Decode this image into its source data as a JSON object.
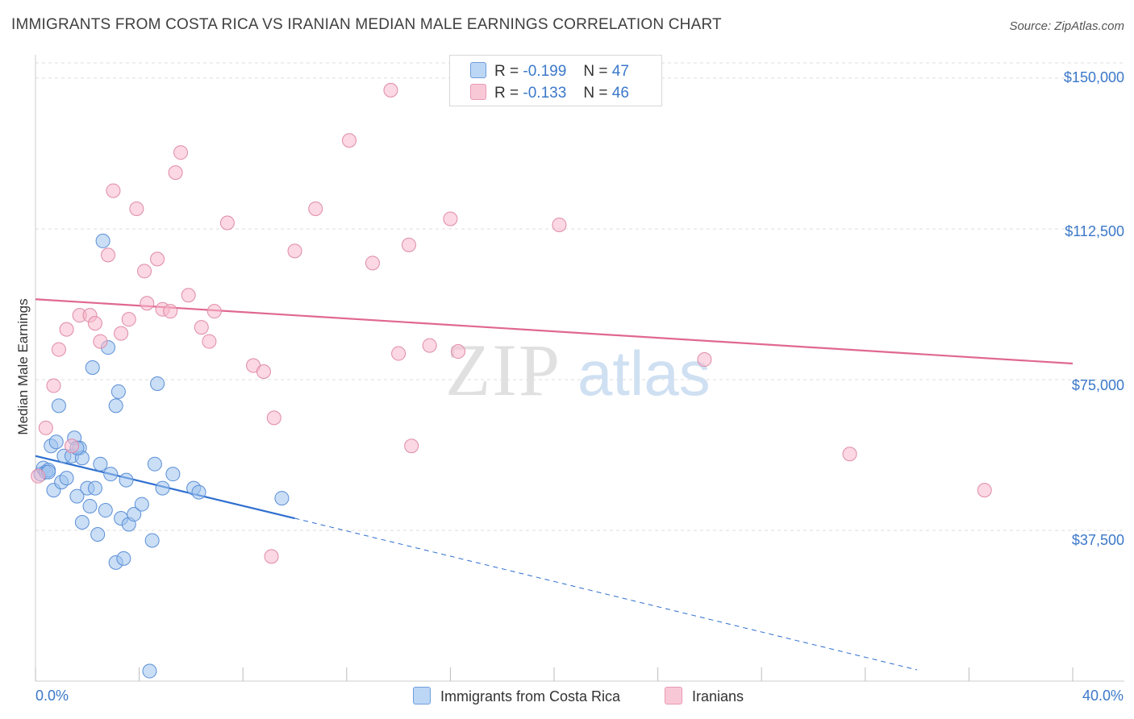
{
  "chart_data": {
    "type": "scatter",
    "title": "IMMIGRANTS FROM COSTA RICA VS IRANIAN MEDIAN MALE EARNINGS CORRELATION CHART",
    "source": "Source: ZipAtlas.com",
    "xlabel": "",
    "ylabel": "Median Male Earnings",
    "xlim": [
      0,
      40
    ],
    "ylim": [
      0,
      155000
    ],
    "x_tick_labels": [
      "0.0%",
      "40.0%"
    ],
    "y_ticks": [
      37500,
      75000,
      112500,
      150000
    ],
    "y_tick_labels": [
      "$37,500",
      "$75,000",
      "$112,500",
      "$150,000"
    ],
    "watermark": {
      "zip": "ZIP",
      "atlas": "atlas"
    },
    "legend": {
      "rows": [
        {
          "r_label": "R =",
          "r_value": "-0.199",
          "n_label": "N =",
          "n_value": "47"
        },
        {
          "r_label": "R =",
          "r_value": "-0.133",
          "n_label": "N =",
          "n_value": "46"
        }
      ]
    },
    "series": [
      {
        "name": "Immigrants from Costa Rica",
        "color": "#9ec3ef",
        "stroke": "#5a8fd6",
        "line_color": "#2f6fcf",
        "trend": {
          "x0": 0.0,
          "y0": 56000,
          "x1": 10.0,
          "y1": 40500,
          "dash_to_x": 34.0,
          "dash_to_y": 2800
        },
        "points": [
          [
            0.2,
            51500
          ],
          [
            0.3,
            53000
          ],
          [
            0.4,
            52000
          ],
          [
            0.5,
            52500
          ],
          [
            0.6,
            58500
          ],
          [
            0.7,
            47500
          ],
          [
            0.8,
            59500
          ],
          [
            0.9,
            68500
          ],
          [
            1.0,
            49500
          ],
          [
            1.1,
            56000
          ],
          [
            1.2,
            50500
          ],
          [
            1.4,
            56000
          ],
          [
            1.5,
            60500
          ],
          [
            1.6,
            46000
          ],
          [
            1.7,
            58000
          ],
          [
            1.8,
            39500
          ],
          [
            1.8,
            55500
          ],
          [
            2.0,
            48000
          ],
          [
            2.1,
            43500
          ],
          [
            2.2,
            78000
          ],
          [
            2.3,
            48000
          ],
          [
            2.4,
            36500
          ],
          [
            2.5,
            54000
          ],
          [
            2.6,
            109500
          ],
          [
            2.7,
            42500
          ],
          [
            2.8,
            83000
          ],
          [
            2.9,
            51500
          ],
          [
            3.1,
            68500
          ],
          [
            3.1,
            29500
          ],
          [
            3.2,
            72000
          ],
          [
            3.3,
            40500
          ],
          [
            3.4,
            30500
          ],
          [
            3.5,
            50000
          ],
          [
            3.6,
            39000
          ],
          [
            3.8,
            41500
          ],
          [
            4.1,
            44000
          ],
          [
            4.5,
            35000
          ],
          [
            4.6,
            54000
          ],
          [
            4.7,
            74000
          ],
          [
            4.9,
            48000
          ],
          [
            5.3,
            51500
          ],
          [
            6.1,
            48000
          ],
          [
            6.3,
            47000
          ],
          [
            9.5,
            45500
          ],
          [
            4.4,
            2500
          ],
          [
            0.5,
            52000
          ],
          [
            1.6,
            58000
          ]
        ]
      },
      {
        "name": "Iranians",
        "color": "#f7b8cc",
        "stroke": "#e08aa6",
        "line_color": "#e06890",
        "trend": {
          "x0": 0.0,
          "y0": 95000,
          "x1": 40.0,
          "y1": 79000
        },
        "points": [
          [
            0.1,
            51000
          ],
          [
            0.4,
            63000
          ],
          [
            0.7,
            73500
          ],
          [
            0.9,
            82500
          ],
          [
            1.2,
            87500
          ],
          [
            1.4,
            58500
          ],
          [
            1.7,
            91000
          ],
          [
            2.1,
            91000
          ],
          [
            2.3,
            89000
          ],
          [
            2.5,
            84500
          ],
          [
            2.8,
            106000
          ],
          [
            3.0,
            122000
          ],
          [
            3.3,
            86500
          ],
          [
            3.6,
            90000
          ],
          [
            3.9,
            117500
          ],
          [
            4.2,
            102000
          ],
          [
            4.3,
            94000
          ],
          [
            4.7,
            105000
          ],
          [
            4.9,
            92500
          ],
          [
            5.2,
            92000
          ],
          [
            5.4,
            126500
          ],
          [
            5.6,
            131500
          ],
          [
            5.9,
            96000
          ],
          [
            6.4,
            88000
          ],
          [
            6.7,
            84500
          ],
          [
            6.9,
            92000
          ],
          [
            7.4,
            114000
          ],
          [
            8.4,
            78500
          ],
          [
            8.8,
            77000
          ],
          [
            9.2,
            65500
          ],
          [
            9.1,
            31000
          ],
          [
            10.0,
            107000
          ],
          [
            10.8,
            117500
          ],
          [
            12.1,
            134500
          ],
          [
            13.0,
            104000
          ],
          [
            13.7,
            147000
          ],
          [
            14.0,
            81500
          ],
          [
            14.4,
            108500
          ],
          [
            14.5,
            58500
          ],
          [
            15.2,
            83500
          ],
          [
            16.0,
            115000
          ],
          [
            16.3,
            82000
          ],
          [
            20.2,
            113500
          ],
          [
            25.8,
            80000
          ],
          [
            31.4,
            56500
          ],
          [
            36.6,
            47500
          ]
        ]
      }
    ]
  }
}
